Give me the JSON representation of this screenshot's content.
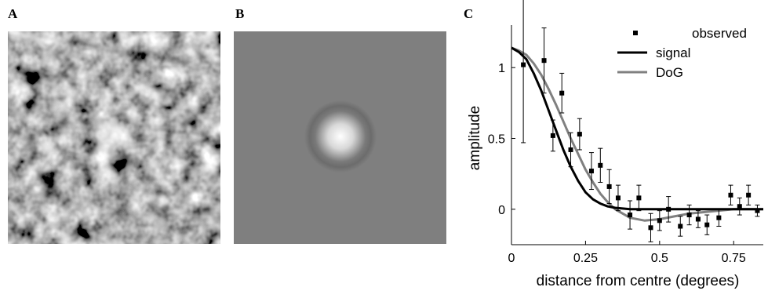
{
  "panels": {
    "a_label": "A",
    "b_label": "B",
    "c_label": "C"
  },
  "chart_data": {
    "type": "scatter",
    "title": "",
    "xlabel": "distance from centre (degrees)",
    "ylabel": "amplitude",
    "xlim": [
      0,
      0.85
    ],
    "ylim": [
      -0.25,
      1.3
    ],
    "x_ticks": [
      {
        "v": 0,
        "label": "0"
      },
      {
        "v": 0.25,
        "label": "0.25"
      },
      {
        "v": 0.5,
        "label": "0.5"
      },
      {
        "v": 0.75,
        "label": "0.75"
      }
    ],
    "y_ticks": [
      {
        "v": 0,
        "label": "0"
      },
      {
        "v": 0.5,
        "label": "0.5"
      },
      {
        "v": 1,
        "label": "1"
      }
    ],
    "legend_position": "top-right",
    "series": [
      {
        "name": "observed",
        "kind": "points",
        "color": "#000000",
        "x": [
          0.04,
          0.11,
          0.14,
          0.17,
          0.2,
          0.23,
          0.27,
          0.3,
          0.33,
          0.36,
          0.4,
          0.43,
          0.47,
          0.5,
          0.53,
          0.57,
          0.6,
          0.63,
          0.66,
          0.7,
          0.74,
          0.77,
          0.8,
          0.83
        ],
        "y": [
          1.02,
          1.05,
          0.52,
          0.82,
          0.42,
          0.53,
          0.27,
          0.31,
          0.16,
          0.08,
          -0.04,
          0.08,
          -0.13,
          -0.08,
          0.0,
          -0.12,
          -0.04,
          -0.07,
          -0.11,
          -0.06,
          0.1,
          0.02,
          0.1,
          -0.01
        ],
        "err": [
          0.55,
          0.23,
          0.11,
          0.14,
          0.12,
          0.11,
          0.13,
          0.12,
          0.12,
          0.09,
          0.1,
          0.09,
          0.1,
          0.07,
          0.09,
          0.07,
          0.07,
          0.06,
          0.07,
          0.06,
          0.07,
          0.06,
          0.07,
          0.04
        ]
      },
      {
        "name": "signal",
        "kind": "line",
        "color": "#000000",
        "x": [
          0.0,
          0.025,
          0.05,
          0.075,
          0.1,
          0.125,
          0.15,
          0.175,
          0.2,
          0.225,
          0.25,
          0.275,
          0.3,
          0.325,
          0.35,
          0.4,
          0.45,
          0.5,
          0.55,
          0.6,
          0.65,
          0.7,
          0.75,
          0.8,
          0.85
        ],
        "y": [
          1.14,
          1.11,
          1.06,
          0.96,
          0.84,
          0.7,
          0.56,
          0.42,
          0.3,
          0.2,
          0.12,
          0.07,
          0.04,
          0.02,
          0.01,
          0.0,
          0.0,
          0.0,
          0.0,
          0.0,
          0.0,
          0.0,
          0.0,
          0.0,
          0.0
        ]
      },
      {
        "name": "DoG",
        "kind": "line",
        "color": "#808080",
        "x": [
          0.0,
          0.025,
          0.05,
          0.075,
          0.1,
          0.125,
          0.15,
          0.175,
          0.2,
          0.225,
          0.25,
          0.275,
          0.3,
          0.325,
          0.35,
          0.4,
          0.45,
          0.5,
          0.55,
          0.6,
          0.65,
          0.7,
          0.75,
          0.8,
          0.85
        ],
        "y": [
          1.14,
          1.12,
          1.09,
          1.03,
          0.95,
          0.85,
          0.74,
          0.62,
          0.5,
          0.39,
          0.28,
          0.19,
          0.11,
          0.05,
          0.0,
          -0.06,
          -0.08,
          -0.07,
          -0.05,
          -0.03,
          -0.02,
          -0.01,
          0.0,
          0.0,
          0.0
        ]
      }
    ]
  }
}
